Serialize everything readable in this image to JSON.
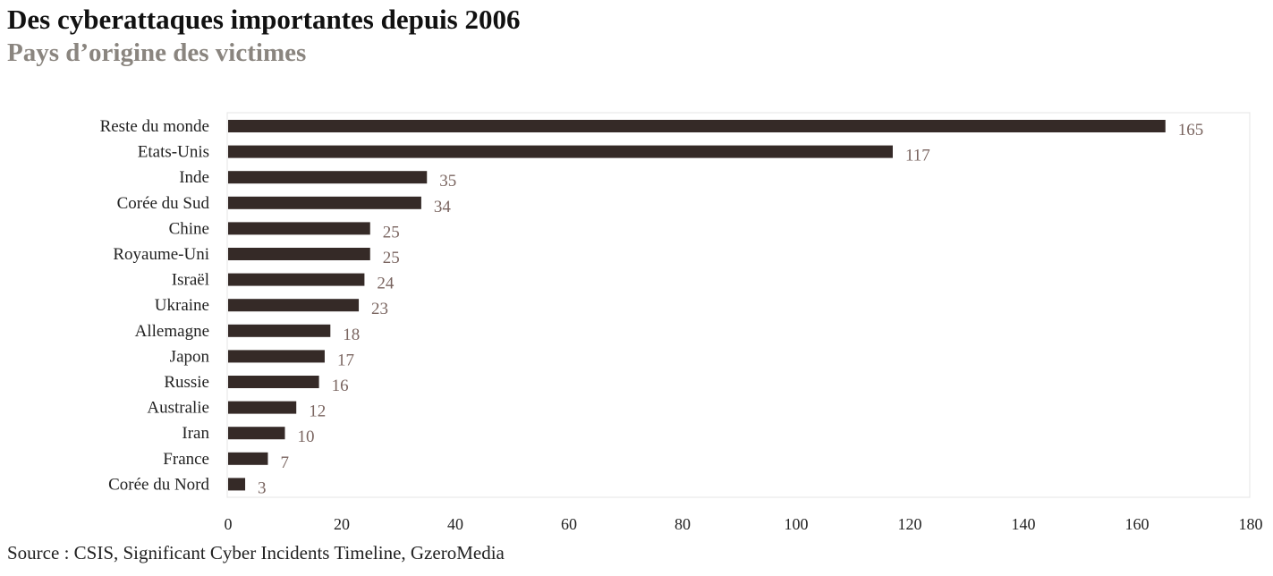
{
  "title": "Des cyberattaques importantes depuis 2006",
  "subtitle": "Pays d’origine des victimes",
  "source": "Source : CSIS, Significant Cyber Incidents Timeline, GzeroMedia",
  "chart_data": {
    "type": "bar",
    "orientation": "horizontal",
    "categories": [
      "Reste du monde",
      "Etats-Unis",
      "Inde",
      "Corée du Sud",
      "Chine",
      "Royaume-Uni",
      "Israël",
      "Ukraine",
      "Allemagne",
      "Japon",
      "Russie",
      "Australie",
      "Iran",
      "France",
      "Corée du Nord"
    ],
    "values": [
      165,
      117,
      35,
      34,
      25,
      25,
      24,
      23,
      18,
      17,
      16,
      12,
      10,
      7,
      3
    ],
    "title": "Des cyberattaques importantes depuis 2006",
    "subtitle": "Pays d’origine des victimes",
    "xlabel": "",
    "ylabel": "",
    "xlim": [
      0,
      180
    ],
    "xticks": [
      0,
      20,
      40,
      60,
      80,
      100,
      120,
      140,
      160,
      180
    ],
    "grid": false,
    "data_labels": true,
    "bar_color": "#352a27",
    "label_color": "#7a6560"
  }
}
